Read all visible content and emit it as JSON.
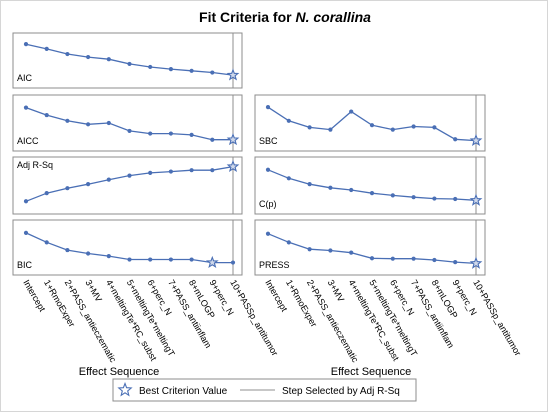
{
  "title_prefix": "Fit Criteria for ",
  "title_italic": "N. corallina",
  "xlabel": "Effect Sequence",
  "steps": [
    "Intercept",
    "1+RmoExper",
    "2+PASS_antieczematic",
    "3+MV",
    "4+meltingTe*RC_subst",
    "5+meltingTe*meltingT",
    "6+perc_N",
    "7+PASS_antiinflam",
    "8+mLOGP",
    "9+perc_N",
    "10+PASSp_antitumor"
  ],
  "selected_step": "10+PASSp_antitumor",
  "legend": {
    "best_label": "Best Criterion Value",
    "selected_label": "Step Selected by Adj R-Sq"
  },
  "colors": {
    "line": "#4a6fb5",
    "panel_border": "#8c8c8c",
    "text": "#000000",
    "selected_line": "#8f8f8f"
  },
  "chart_data": [
    {
      "type": "line",
      "ylabel": "AIC",
      "values": [
        0.88,
        0.77,
        0.65,
        0.58,
        0.53,
        0.42,
        0.35,
        0.3,
        0.26,
        0.22,
        0.16
      ],
      "best_index": 10
    },
    {
      "type": "line",
      "ylabel": "AICC",
      "values": [
        0.85,
        0.68,
        0.55,
        0.47,
        0.5,
        0.32,
        0.26,
        0.26,
        0.23,
        0.12,
        0.12
      ],
      "best_index": 10
    },
    {
      "type": "line",
      "ylabel": "SBC",
      "values": [
        0.86,
        0.55,
        0.4,
        0.35,
        0.76,
        0.45,
        0.35,
        0.42,
        0.4,
        0.13,
        0.1
      ],
      "best_index": 10
    },
    {
      "type": "line",
      "ylabel": "Adj R-Sq",
      "values": [
        0.15,
        0.33,
        0.44,
        0.53,
        0.63,
        0.72,
        0.78,
        0.81,
        0.84,
        0.84,
        0.92
      ],
      "best_index": 10
    },
    {
      "type": "line",
      "ylabel": "C(p)",
      "values": [
        0.85,
        0.66,
        0.53,
        0.45,
        0.4,
        0.33,
        0.28,
        0.24,
        0.21,
        0.2,
        0.17
      ],
      "best_index": 10
    },
    {
      "type": "line",
      "ylabel": "BIC",
      "values": [
        0.84,
        0.62,
        0.44,
        0.36,
        0.3,
        0.22,
        0.22,
        0.22,
        0.22,
        0.15,
        0.15
      ],
      "best_index": 9
    },
    {
      "type": "line",
      "ylabel": "PRESS",
      "values": [
        0.82,
        0.62,
        0.46,
        0.43,
        0.38,
        0.25,
        0.24,
        0.24,
        0.21,
        0.16,
        0.13
      ],
      "best_index": 10
    }
  ]
}
